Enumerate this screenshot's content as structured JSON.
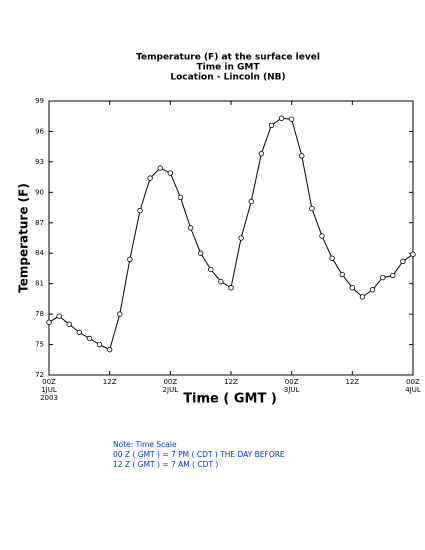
{
  "chart_data": {
    "type": "line",
    "title": "Temperature (F) at the surface level",
    "subtitle": "Time in GMT",
    "location": "Location - Lincoln (NB)",
    "ylabel": "Temperature (F)",
    "xlabel": "Time ( GMT )",
    "x": [
      0,
      2,
      4,
      6,
      8,
      10,
      12,
      14,
      16,
      18,
      20,
      22,
      24,
      26,
      28,
      30,
      32,
      34,
      36,
      38,
      40,
      42,
      44,
      46,
      48,
      50,
      52,
      54,
      56,
      58,
      60,
      62,
      64,
      66,
      68,
      70,
      72
    ],
    "values": [
      77.2,
      77.8,
      77.0,
      76.2,
      75.6,
      75.0,
      74.5,
      78.0,
      83.4,
      88.2,
      91.4,
      92.4,
      91.9,
      89.5,
      86.5,
      84.0,
      82.4,
      81.2,
      80.6,
      85.5,
      89.1,
      93.8,
      96.6,
      97.3,
      97.2,
      93.6,
      88.4,
      85.7,
      83.5,
      81.9,
      80.6,
      79.7,
      80.4,
      81.6,
      81.8,
      83.2,
      83.9
    ],
    "color": "#000000",
    "xlim": [
      0,
      72
    ],
    "xticks": [
      {
        "value": 0,
        "label": "00Z\n1JUL\n2003"
      },
      {
        "value": 12,
        "label": "12Z"
      },
      {
        "value": 24,
        "label": "00Z\n2JUL"
      },
      {
        "value": 36,
        "label": "12Z"
      },
      {
        "value": 48,
        "label": "00Z\n3JUL"
      },
      {
        "value": 60,
        "label": "12Z"
      },
      {
        "value": 72,
        "label": "00Z\n4JUL"
      }
    ],
    "ylim": [
      72,
      99
    ],
    "yticks": [
      72,
      75,
      78,
      81,
      84,
      87,
      90,
      93,
      96,
      99
    ],
    "notes": [
      "Note: Time Scale",
      "00 Z ( GMT ) = 7 PM ( CDT ) THE DAY BEFORE",
      "12 Z ( GMT ) = 7 AM ( CDT )"
    ]
  }
}
